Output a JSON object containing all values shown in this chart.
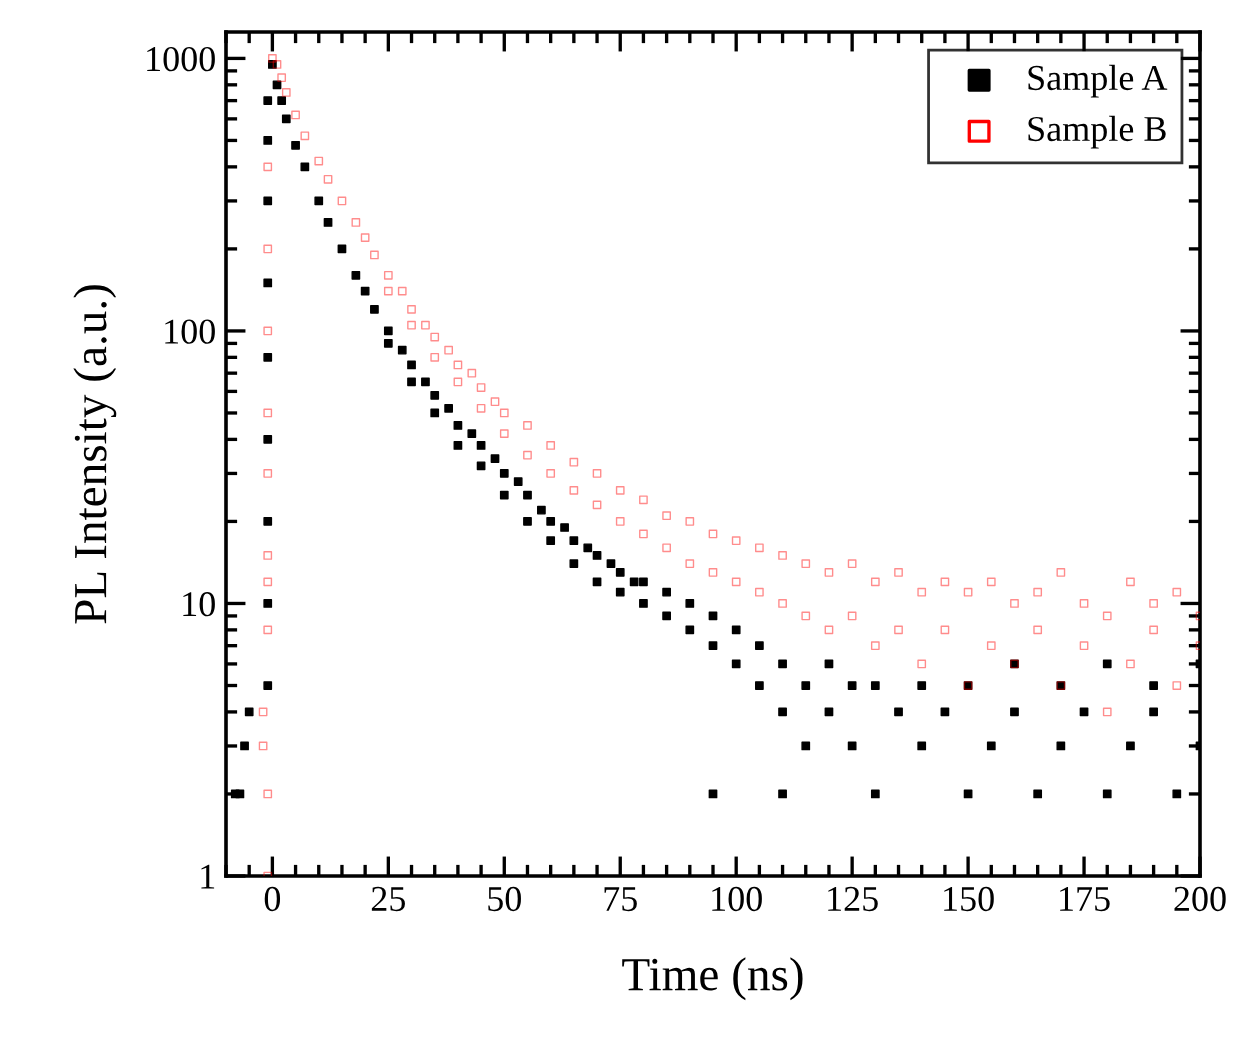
{
  "chart_data": {
    "type": "scatter",
    "xlabel": "Time (ns)",
    "ylabel": "PL Intensity (a.u.)",
    "log": "y",
    "xlim": [
      -10,
      200
    ],
    "ylim": [
      1,
      1250
    ],
    "xticks": [
      0,
      25,
      50,
      75,
      100,
      125,
      150,
      175,
      200
    ],
    "yticks": [
      1,
      10,
      100,
      1000
    ],
    "marker": "square",
    "legend": "top right",
    "grid": false,
    "series": [
      {
        "name": "Sample A",
        "color": "#000000",
        "x": [
          -8,
          -7,
          -6,
          -5,
          -1,
          -1,
          -1,
          -1,
          -1,
          -1,
          -1,
          -1,
          -1,
          0,
          1,
          2,
          3,
          5,
          7,
          10,
          12,
          15,
          18,
          20,
          22,
          25,
          25,
          28,
          30,
          30,
          33,
          35,
          35,
          38,
          40,
          40,
          43,
          45,
          45,
          48,
          50,
          50,
          53,
          55,
          55,
          58,
          60,
          60,
          63,
          65,
          65,
          68,
          70,
          70,
          73,
          75,
          75,
          78,
          80,
          80,
          85,
          85,
          90,
          90,
          95,
          95,
          100,
          100,
          105,
          105,
          110,
          110,
          115,
          115,
          120,
          120,
          125,
          125,
          130,
          130,
          135,
          140,
          140,
          145,
          150,
          150,
          155,
          160,
          160,
          165,
          170,
          170,
          175,
          180,
          180,
          185,
          190,
          190,
          195,
          200,
          200,
          110,
          95
        ],
        "values": [
          2,
          2,
          3,
          4,
          5,
          10,
          20,
          40,
          80,
          150,
          300,
          500,
          700,
          950,
          800,
          700,
          600,
          480,
          400,
          300,
          250,
          200,
          160,
          140,
          120,
          100,
          90,
          85,
          75,
          65,
          65,
          58,
          50,
          52,
          45,
          38,
          42,
          38,
          32,
          34,
          30,
          25,
          28,
          25,
          20,
          22,
          20,
          17,
          19,
          17,
          14,
          16,
          15,
          12,
          14,
          13,
          11,
          12,
          12,
          10,
          11,
          9,
          10,
          8,
          9,
          7,
          8,
          6,
          7,
          5,
          6,
          4,
          5,
          3,
          6,
          4,
          5,
          3,
          5,
          2,
          4,
          5,
          3,
          4,
          2,
          5,
          3,
          4,
          6,
          2,
          3,
          5,
          4,
          2,
          6,
          3,
          4,
          5,
          2,
          3,
          6,
          2,
          2
        ]
      },
      {
        "name": "Sample B",
        "color": "#ff0000",
        "x": [
          -1,
          -1,
          -2,
          -2,
          -1,
          -1,
          -1,
          -1,
          -1,
          -1,
          -1,
          -1,
          0,
          1,
          2,
          3,
          5,
          7,
          10,
          12,
          15,
          18,
          20,
          22,
          25,
          25,
          28,
          30,
          30,
          33,
          35,
          35,
          38,
          40,
          40,
          43,
          45,
          45,
          48,
          50,
          50,
          55,
          55,
          60,
          60,
          65,
          65,
          70,
          70,
          75,
          75,
          80,
          80,
          85,
          85,
          90,
          90,
          95,
          95,
          100,
          100,
          105,
          105,
          110,
          110,
          115,
          115,
          120,
          120,
          125,
          125,
          130,
          130,
          135,
          135,
          140,
          140,
          145,
          145,
          150,
          150,
          155,
          155,
          160,
          160,
          165,
          165,
          170,
          170,
          175,
          175,
          180,
          180,
          185,
          185,
          190,
          190,
          195,
          195,
          200,
          200
        ],
        "values": [
          1,
          2,
          3,
          4,
          8,
          12,
          15,
          30,
          50,
          100,
          200,
          400,
          1000,
          950,
          850,
          750,
          620,
          520,
          420,
          360,
          300,
          250,
          220,
          190,
          160,
          140,
          140,
          120,
          105,
          105,
          95,
          80,
          85,
          75,
          65,
          70,
          62,
          52,
          55,
          50,
          42,
          45,
          35,
          38,
          30,
          33,
          26,
          30,
          23,
          26,
          20,
          24,
          18,
          21,
          16,
          20,
          14,
          18,
          13,
          17,
          12,
          16,
          11,
          15,
          10,
          14,
          9,
          13,
          8,
          14,
          9,
          12,
          7,
          13,
          8,
          11,
          6,
          12,
          8,
          11,
          5,
          12,
          7,
          10,
          6,
          11,
          8,
          13,
          5,
          10,
          7,
          9,
          4,
          12,
          6,
          10,
          8,
          11,
          5,
          9,
          7
        ]
      }
    ]
  }
}
